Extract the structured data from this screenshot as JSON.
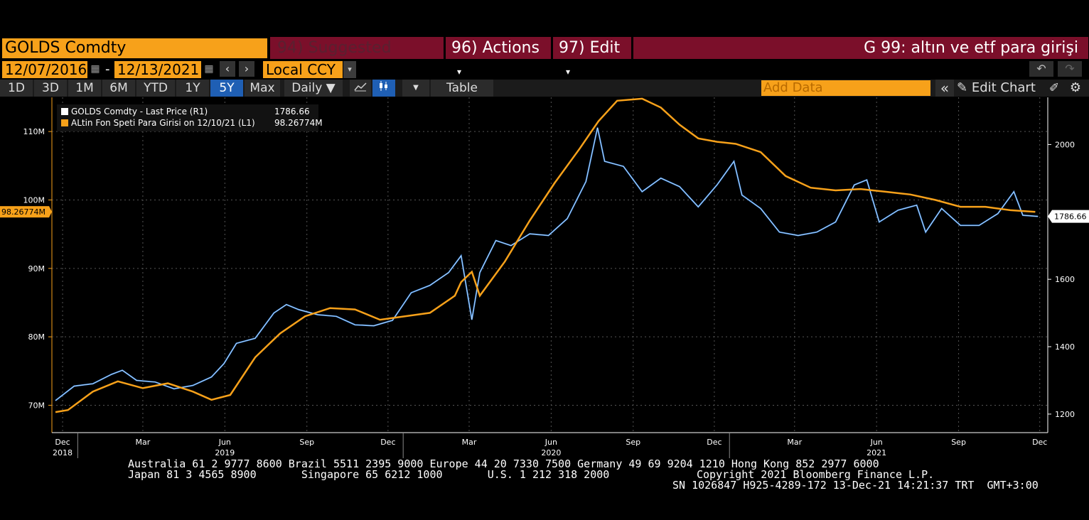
{
  "header": {
    "security": "GOLDS Comdty",
    "suggested_charts": "94) Suggested Charts",
    "actions": "96) Actions",
    "edit": "97) Edit",
    "title": "G 99: altın ve etf para girişi",
    "dropdown_arrow": "▾"
  },
  "dates": {
    "start": "12/07/2016",
    "end": "12/13/2021",
    "separator": "-"
  },
  "currency": "Local CCY",
  "ranges": [
    "1D",
    "3D",
    "1M",
    "6M",
    "YTD",
    "1Y",
    "5Y",
    "Max"
  ],
  "active_range": "5Y",
  "frequency": "Daily",
  "table_label": "Table",
  "add_data_placeholder": "Add Data",
  "edit_chart": "Edit Chart",
  "icons": {
    "calendar": "calendar-icon",
    "prev": "chevron-left-icon",
    "next": "chevron-right-icon",
    "undo": "undo-icon",
    "redo": "redo-icon",
    "line_chart": "line-chart-icon",
    "candle_chart": "candlestick-icon",
    "collapse": "double-chevron-left-icon",
    "pencil": "pencil-icon",
    "gear": "gear-icon"
  },
  "colors": {
    "orange": "#f7a11a",
    "blue": "#3d8ee8",
    "red_bar": "#7b0f2a",
    "active": "#1f5fb4"
  },
  "chart_data": {
    "type": "line",
    "x_labels": [
      "Dec",
      "Mar",
      "Jun",
      "Sep",
      "Dec",
      "Mar",
      "Jun",
      "Sep",
      "Dec",
      "Mar",
      "Jun",
      "Sep",
      "Dec"
    ],
    "x_years": [
      "2018",
      "2019",
      "2020",
      "2021"
    ],
    "left_axis": {
      "ticks": [
        "70M",
        "80M",
        "90M",
        "100M",
        "110M"
      ],
      "ylim": [
        66,
        115
      ]
    },
    "right_axis": {
      "ticks": [
        "1200",
        "1400",
        "1600",
        "2000"
      ],
      "ylim": [
        1145,
        2140
      ]
    },
    "grid": true,
    "legend_position": "top-left",
    "series": [
      {
        "name": "GOLDS Comdty - Last Price (R1)",
        "last_value": "1786.66",
        "axis": "right",
        "color": "#3d8ee8",
        "x": [
          "2018-12-07",
          "2018-12-28",
          "2019-01-18",
          "2019-02-08",
          "2019-02-20",
          "2019-03-08",
          "2019-03-29",
          "2019-04-19",
          "2019-05-10",
          "2019-05-31",
          "2019-06-14",
          "2019-06-28",
          "2019-07-19",
          "2019-08-09",
          "2019-08-23",
          "2019-09-06",
          "2019-09-27",
          "2019-10-18",
          "2019-11-08",
          "2019-11-29",
          "2019-12-20",
          "2020-01-10",
          "2020-01-31",
          "2020-02-21",
          "2020-03-06",
          "2020-03-18",
          "2020-03-27",
          "2020-04-14",
          "2020-05-01",
          "2020-05-22",
          "2020-06-12",
          "2020-07-03",
          "2020-07-24",
          "2020-08-06",
          "2020-08-14",
          "2020-09-04",
          "2020-09-25",
          "2020-10-16",
          "2020-11-06",
          "2020-11-27",
          "2020-12-18",
          "2021-01-06",
          "2021-01-15",
          "2021-02-05",
          "2021-02-26",
          "2021-03-19",
          "2021-04-09",
          "2021-04-30",
          "2021-05-21",
          "2021-06-04",
          "2021-06-18",
          "2021-07-09",
          "2021-07-30",
          "2021-08-09",
          "2021-08-27",
          "2021-09-17",
          "2021-10-08",
          "2021-10-29",
          "2021-11-16",
          "2021-11-26",
          "2021-12-13"
        ],
        "y": [
          1240,
          1283,
          1290,
          1318,
          1330,
          1300,
          1295,
          1275,
          1285,
          1310,
          1350,
          1410,
          1425,
          1500,
          1525,
          1510,
          1495,
          1490,
          1465,
          1462,
          1478,
          1560,
          1582,
          1620,
          1670,
          1480,
          1620,
          1715,
          1700,
          1735,
          1730,
          1780,
          1890,
          2050,
          1950,
          1935,
          1860,
          1900,
          1875,
          1815,
          1880,
          1950,
          1850,
          1810,
          1740,
          1730,
          1740,
          1770,
          1880,
          1895,
          1770,
          1805,
          1820,
          1740,
          1810,
          1760,
          1760,
          1795,
          1860,
          1790,
          1786.66
        ]
      },
      {
        "name": "ALtin Fon Speti Para Girisi on 12/10/21 (L1)",
        "last_value": "98.26774M",
        "axis": "left",
        "color": "#f7a11a",
        "x": [
          "2018-12-07",
          "2018-12-21",
          "2019-01-18",
          "2019-02-15",
          "2019-03-15",
          "2019-04-12",
          "2019-05-10",
          "2019-05-31",
          "2019-06-21",
          "2019-07-19",
          "2019-08-16",
          "2019-09-13",
          "2019-10-11",
          "2019-11-08",
          "2019-12-06",
          "2020-01-03",
          "2020-01-31",
          "2020-02-28",
          "2020-03-06",
          "2020-03-18",
          "2020-03-27",
          "2020-04-24",
          "2020-05-22",
          "2020-06-19",
          "2020-07-17",
          "2020-08-07",
          "2020-08-28",
          "2020-09-25",
          "2020-10-16",
          "2020-11-06",
          "2020-11-27",
          "2020-12-18",
          "2021-01-08",
          "2021-02-05",
          "2021-03-05",
          "2021-04-02",
          "2021-04-30",
          "2021-05-28",
          "2021-06-25",
          "2021-07-23",
          "2021-08-20",
          "2021-09-17",
          "2021-10-15",
          "2021-11-12",
          "2021-12-10"
        ],
        "y": [
          69,
          69.3,
          72,
          73.5,
          72.5,
          73.2,
          72,
          70.8,
          71.5,
          77,
          80.5,
          83,
          84.2,
          84,
          82.5,
          83,
          83.5,
          86,
          88,
          89.5,
          86,
          91,
          97,
          102.5,
          107.5,
          111.5,
          114.5,
          114.8,
          113.5,
          111,
          109,
          108.5,
          108.2,
          107,
          103.5,
          101.8,
          101.4,
          101.6,
          101.2,
          100.8,
          100,
          99,
          99,
          98.5,
          98.26774
        ]
      }
    ]
  },
  "footer": {
    "line1": "Australia 61 2 9777 8600 Brazil 5511 2395 9000 Europe 44 20 7330 7500 Germany 49 69 9204 1210 Hong Kong 852 2977 6000",
    "line2_left": "Japan 81 3 4565 8900       Singapore 65 6212 1000       U.S. 1 212 318 2000",
    "line2_right": "Copyright 2021 Bloomberg Finance L.P.",
    "line3": "SN 1026847 H925-4289-172 13-Dec-21 14:21:37 TRT  GMT+3:00"
  }
}
